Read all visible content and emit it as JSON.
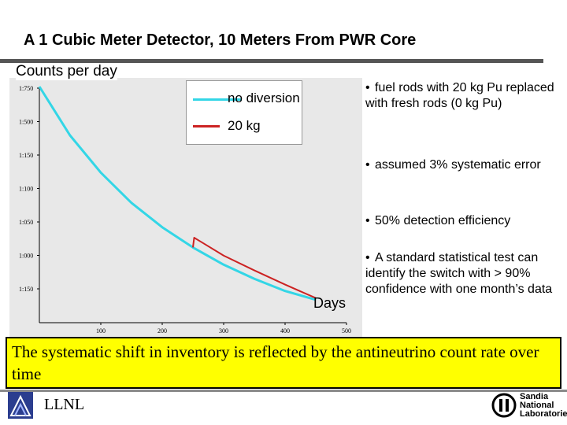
{
  "title": "A 1 Cubic Meter Detector, 10 Meters From PWR Core",
  "legend": {
    "no_diversion": "no diversion",
    "diversion": "20 kg"
  },
  "bullets": [
    "fuel rods with 20 kg Pu replaced with fresh rods (0 kg Pu)",
    "assumed 3% systematic error",
    "50% detection efficiency",
    "A standard statistical test can identify the switch with > 90% confidence with one month’s data"
  ],
  "caption": "The systematic shift in inventory is reflected by the antineutrino count rate over time",
  "footer": {
    "left_org": "LLNL",
    "right_org_lines": [
      "Sandia",
      "National",
      "Laboratories"
    ]
  },
  "colors": {
    "no_diversion": "#33d6e6",
    "diversion": "#cc2222",
    "caption_bg": "#ffff00"
  },
  "icons": {
    "llnl": "llnl-logo-icon",
    "sandia": "sandia-logo-icon"
  },
  "chart_data": {
    "type": "line",
    "title": "",
    "xlabel": "Days",
    "ylabel": "Counts per day",
    "xlim": [
      0,
      500
    ],
    "ylim": [
      1000,
      1700
    ],
    "x_ticks": [
      "100",
      "200",
      "300",
      "400",
      "500"
    ],
    "y_ticks": [
      "1:750",
      "1:500",
      "1:150",
      "1:100",
      "1:050",
      "1:000",
      "1:150"
    ],
    "grid": false,
    "legend_position": "top-right",
    "series": [
      {
        "name": "no diversion",
        "x": [
          0,
          50,
          100,
          150,
          200,
          250,
          300,
          350,
          400,
          450
        ],
        "y": [
          1700,
          1555,
          1445,
          1355,
          1283,
          1223,
          1172,
          1130,
          1094,
          1068
        ]
      },
      {
        "name": "20 kg",
        "x": [
          250,
          252,
          300,
          350,
          400,
          450
        ],
        "y": [
          1223,
          1252,
          1199,
          1155,
          1113,
          1073
        ]
      }
    ]
  }
}
